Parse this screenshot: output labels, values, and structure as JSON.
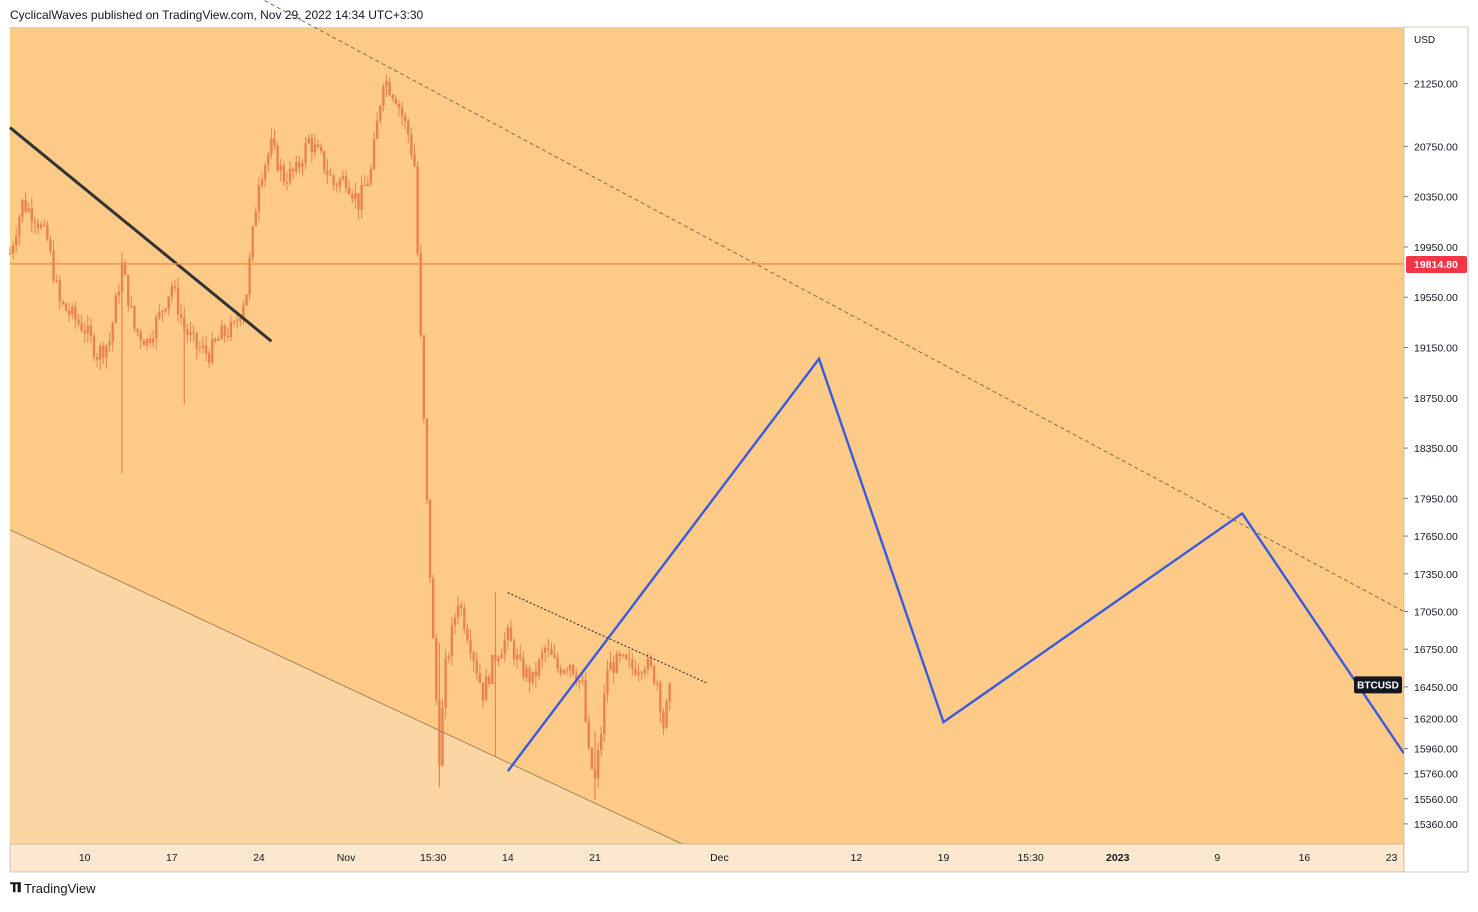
{
  "header": {
    "publisher_line": "CyclicalWaves published on TradingView.com, Nov 29, 2022 14:34 UTC+3:30"
  },
  "footer": {
    "brand": "TradingView"
  },
  "colors": {
    "background": "#fdcb87",
    "channel_fill": "#fcd6a2",
    "axis_bg": "#fbe8cf",
    "candle": "#e8834f",
    "price_line": "#f5894f",
    "price_tag": "#f23645",
    "projection": "#3a5be0",
    "trendline_dark": "#333333",
    "dashed_line": "#8a6a48"
  },
  "chart_data": {
    "type": "candlestick",
    "symbol": "BTCUSD",
    "currency": "USD",
    "current_price_label": "19814.80",
    "current_price": 19814.8,
    "ylim": [
      15200,
      21700
    ],
    "y_ticks": [
      {
        "value": 21250,
        "label": "21250.00"
      },
      {
        "value": 20750,
        "label": "20750.00"
      },
      {
        "value": 20350,
        "label": "20350.00"
      },
      {
        "value": 19950,
        "label": "19950.00"
      },
      {
        "value": 19550,
        "label": "19550.00"
      },
      {
        "value": 19150,
        "label": "19150.00"
      },
      {
        "value": 18750,
        "label": "18750.00"
      },
      {
        "value": 18350,
        "label": "18350.00"
      },
      {
        "value": 17950,
        "label": "17950.00"
      },
      {
        "value": 17650,
        "label": "17650.00"
      },
      {
        "value": 17350,
        "label": "17350.00"
      },
      {
        "value": 17050,
        "label": "17050.00"
      },
      {
        "value": 16750,
        "label": "16750.00"
      },
      {
        "value": 16450,
        "label": "16450.00"
      },
      {
        "value": 16200,
        "label": "16200.00"
      },
      {
        "value": 15960,
        "label": "15960.00"
      },
      {
        "value": 15760,
        "label": "15760.00"
      },
      {
        "value": 15560,
        "label": "15560.00"
      },
      {
        "value": 15360,
        "label": "15360.00"
      }
    ],
    "x_ticks": [
      {
        "day": 10,
        "label": "10",
        "bold": false
      },
      {
        "day": 17,
        "label": "17",
        "bold": false
      },
      {
        "day": 24,
        "label": "24",
        "bold": false
      },
      {
        "day": 31,
        "label": "Nov",
        "bold": false
      },
      {
        "day": 38,
        "label": "15:30",
        "bold": false
      },
      {
        "day": 44,
        "label": "14",
        "bold": false
      },
      {
        "day": 51,
        "label": "21",
        "bold": false
      },
      {
        "day": 61,
        "label": "Dec",
        "bold": false
      },
      {
        "day": 72,
        "label": "12",
        "bold": false
      },
      {
        "day": 79,
        "label": "19",
        "bold": false
      },
      {
        "day": 86,
        "label": "15:30",
        "bold": false
      },
      {
        "day": 93,
        "label": "2023",
        "bold": true
      },
      {
        "day": 101,
        "label": "9",
        "bold": false
      },
      {
        "day": 108,
        "label": "16",
        "bold": false
      },
      {
        "day": 115,
        "label": "23",
        "bold": false
      }
    ],
    "x_range_days": [
      4,
      116
    ],
    "price_path": [
      [
        4,
        19900
      ],
      [
        5,
        20300
      ],
      [
        6,
        20200
      ],
      [
        7,
        20000
      ],
      [
        8,
        19500
      ],
      [
        9,
        19400
      ],
      [
        10,
        19300
      ],
      [
        11,
        19100
      ],
      [
        12,
        19200
      ],
      [
        13,
        19800
      ],
      [
        14,
        19300
      ],
      [
        15,
        19200
      ],
      [
        16,
        19400
      ],
      [
        17,
        19650
      ],
      [
        18,
        19300
      ],
      [
        19,
        19150
      ],
      [
        20,
        19100
      ],
      [
        21,
        19250
      ],
      [
        22,
        19300
      ],
      [
        23,
        19600
      ],
      [
        24,
        20500
      ],
      [
        25,
        20750
      ],
      [
        26,
        20500
      ],
      [
        27,
        20550
      ],
      [
        28,
        20800
      ],
      [
        29,
        20650
      ],
      [
        30,
        20450
      ],
      [
        31,
        20500
      ],
      [
        32,
        20300
      ],
      [
        33,
        20550
      ],
      [
        34,
        21300
      ],
      [
        35,
        21150
      ],
      [
        36,
        20850
      ],
      [
        36.5,
        20600
      ],
      [
        37,
        19200
      ],
      [
        37.5,
        17900
      ],
      [
        38,
        16800
      ],
      [
        38.5,
        15900
      ],
      [
        39,
        16600
      ],
      [
        40,
        17150
      ],
      [
        41,
        16800
      ],
      [
        42,
        16400
      ],
      [
        43,
        16700
      ],
      [
        44,
        16850
      ],
      [
        45,
        16600
      ],
      [
        46,
        16500
      ],
      [
        47,
        16750
      ],
      [
        48,
        16600
      ],
      [
        49,
        16650
      ],
      [
        50,
        16450
      ],
      [
        50.5,
        15900
      ],
      [
        51,
        15700
      ],
      [
        51.5,
        16100
      ],
      [
        52,
        16600
      ],
      [
        53,
        16650
      ],
      [
        54,
        16600
      ],
      [
        55,
        16650
      ],
      [
        56,
        16500
      ],
      [
        56.5,
        16150
      ],
      [
        57,
        16400
      ]
    ],
    "spikes": [
      {
        "day": 13,
        "low": 18150,
        "high": 19850
      },
      {
        "day": 38.5,
        "low": 15650,
        "high": 16800
      },
      {
        "day": 43,
        "low": 15900,
        "high": 17200
      },
      {
        "day": 51,
        "low": 15550,
        "high": 16100
      },
      {
        "day": 18,
        "low": 18700,
        "high": 19300
      }
    ],
    "projection_path": [
      {
        "day": 44,
        "price": 15780
      },
      {
        "day": 69,
        "price": 19060
      },
      {
        "day": 79,
        "price": 16170
      },
      {
        "day": 103,
        "price": 17830
      },
      {
        "day": 116,
        "price": 15920
      }
    ],
    "trendlines": [
      {
        "name": "dark-trendline",
        "from": {
          "day": 4,
          "price": 20900
        },
        "to": {
          "day": 25,
          "price": 19200
        }
      },
      {
        "name": "dashed-resistance",
        "from": {
          "day": 19,
          "price": 22200
        },
        "to": {
          "day": 116,
          "price": 17050
        }
      },
      {
        "name": "dotted-triangle",
        "from": {
          "day": 44,
          "price": 17200
        },
        "to": {
          "day": 60,
          "price": 16480
        }
      },
      {
        "name": "channel-lower",
        "from": {
          "day": 4,
          "price": 17700
        },
        "to": {
          "day": 58,
          "price": 15200
        }
      }
    ]
  }
}
